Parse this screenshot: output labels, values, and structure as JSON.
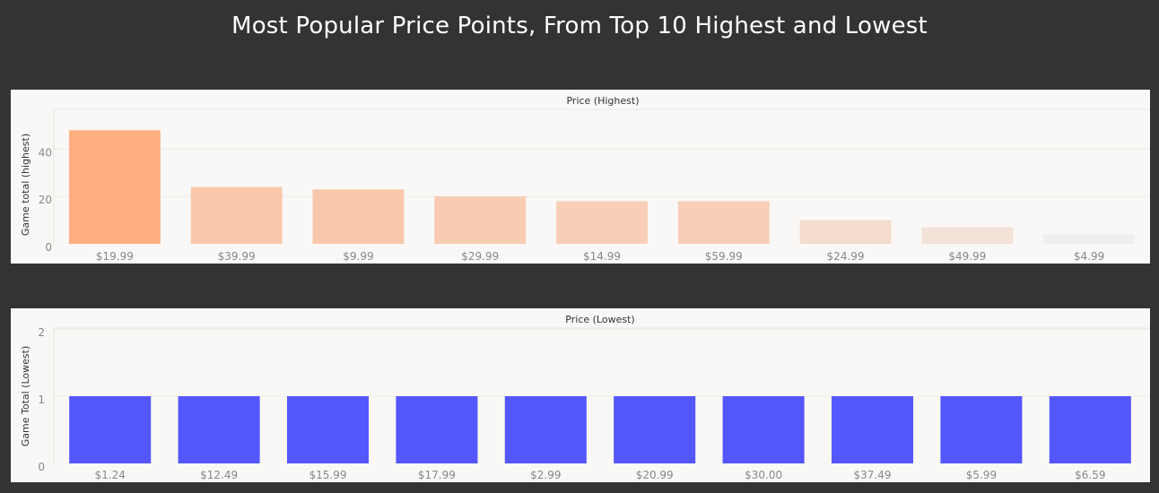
{
  "title": "Most Popular Price Points, From Top 10 Highest and Lowest",
  "chart_data": [
    {
      "type": "bar",
      "column_header": "Price (Highest)",
      "xlabel": "",
      "ylabel": "Game total (highest)",
      "ylim": [
        0,
        50
      ],
      "yticks": [
        0,
        20,
        40
      ],
      "categories": [
        "$19.99",
        "$39.99",
        "$9.99",
        "$29.99",
        "$14.99",
        "$59.99",
        "$24.99",
        "$49.99",
        "$4.99"
      ],
      "values": [
        48,
        24,
        23,
        20,
        18,
        18,
        10,
        7,
        4
      ],
      "color_scale": [
        "#f0efed",
        "#ffaf80"
      ]
    },
    {
      "type": "bar",
      "column_header": "Price (Lowest)",
      "xlabel": "",
      "ylabel": "Game Total (Lowest)",
      "ylim": [
        0,
        2
      ],
      "yticks": [
        0,
        1,
        2
      ],
      "categories": [
        "$1.24",
        "$12.49",
        "$15.99",
        "$17.99",
        "$2.99",
        "$20.99",
        "$30.00",
        "$37.49",
        "$5.99",
        "$6.59"
      ],
      "values": [
        1,
        1,
        1,
        1,
        1,
        1,
        1,
        1,
        1,
        1
      ],
      "color": "#5457fe"
    }
  ]
}
